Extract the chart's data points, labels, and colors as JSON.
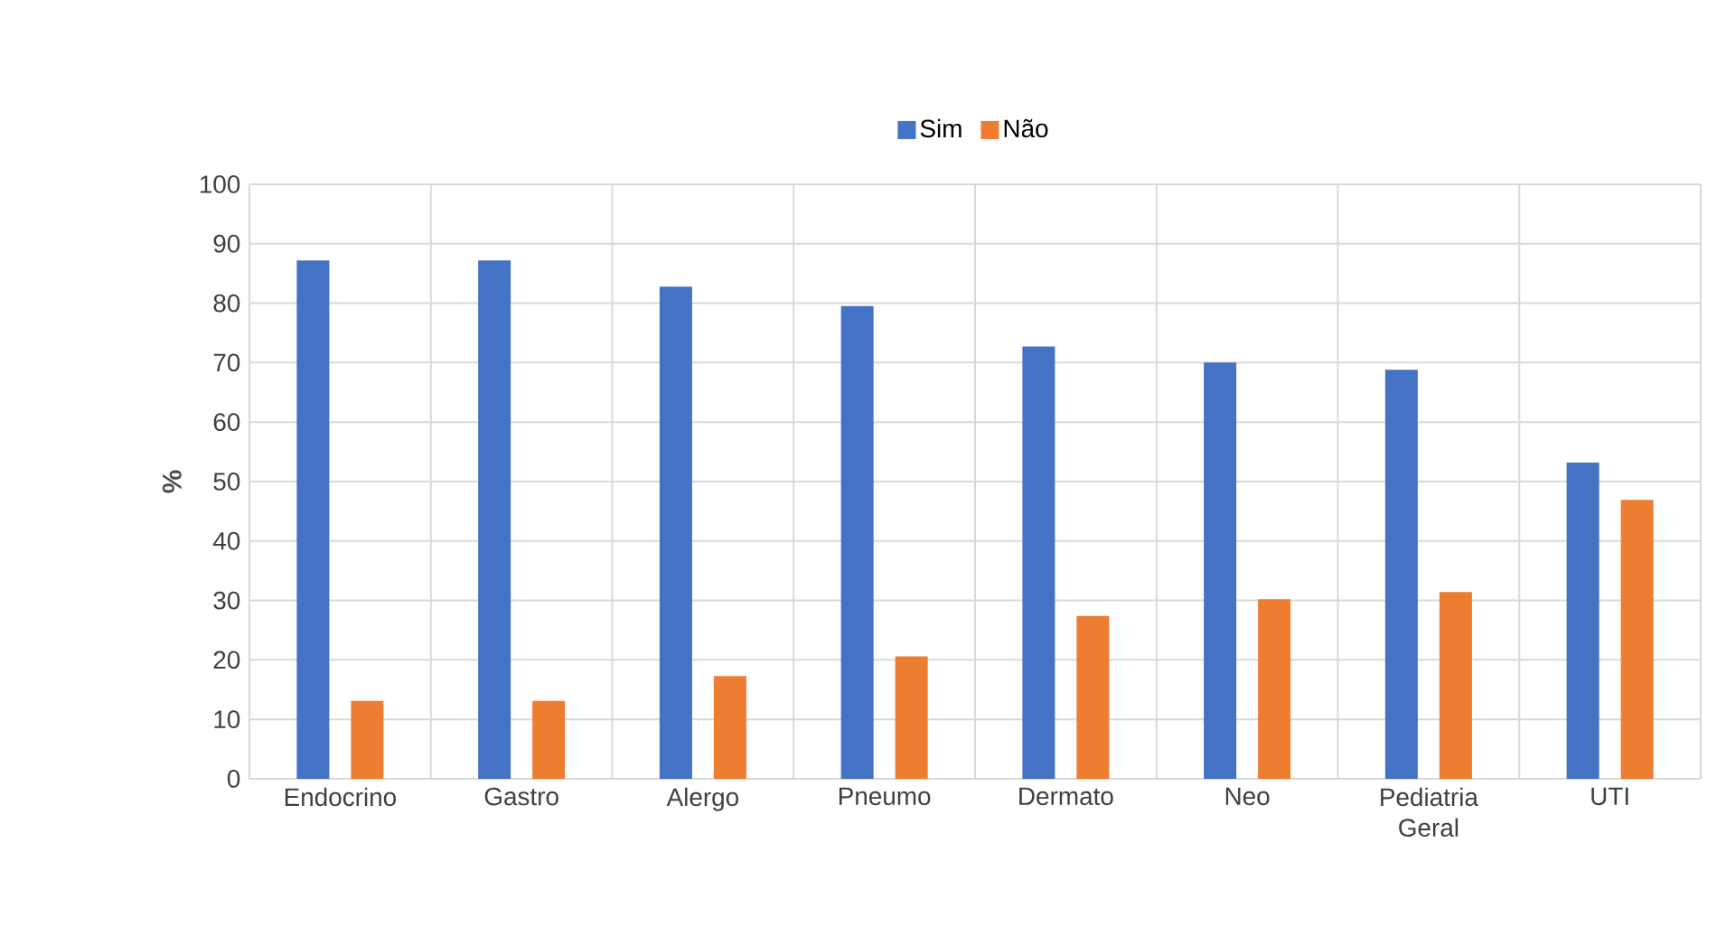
{
  "chart_data": {
    "type": "bar",
    "ylabel": "%",
    "categories": [
      "Endocrino",
      "Gastro",
      "Alergo",
      "Pneumo",
      "Dermato",
      "Neo",
      "Pediatria Geral",
      "UTI"
    ],
    "series": [
      {
        "name": "Sim",
        "color": "#4472c4",
        "values": [
          87.2,
          87.2,
          82.8,
          79.5,
          72.7,
          70,
          68.8,
          53.2
        ]
      },
      {
        "name": "Não",
        "color": "#ed7d31",
        "values": [
          13.1,
          13.1,
          17.3,
          20.6,
          27.4,
          30.2,
          31.4,
          46.9
        ]
      }
    ],
    "ylim": [
      0,
      100
    ],
    "yticks": [
      0,
      10,
      20,
      30,
      40,
      50,
      60,
      70,
      80,
      90,
      100
    ],
    "grid": true,
    "legend": "top"
  }
}
